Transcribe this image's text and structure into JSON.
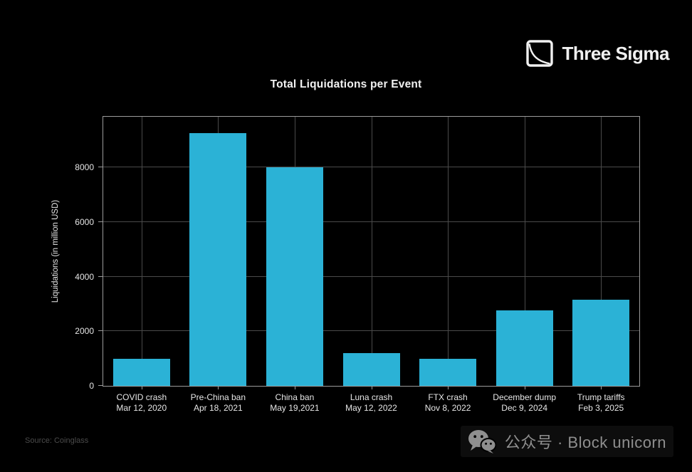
{
  "logo": {
    "text": "Three Sigma",
    "icon": "three-sigma-square-curve-icon"
  },
  "footer": {
    "source": "Source: Coinglass",
    "branding": "公众号 · Block unicorn",
    "branding_icon": "wechat-icon"
  },
  "colors": {
    "background": "#000000",
    "bar": "#2bb2d6",
    "gridline": "#4a4a4a",
    "axis_border": "#9c9c9c",
    "title_text": "#f2f2f2",
    "tick_text": "#e6e6e6",
    "source_text": "#4b4b4b",
    "branding_text": "#8f8f8f"
  },
  "chart_data": {
    "type": "bar",
    "title": "Total Liquidations per Event",
    "xlabel": "",
    "ylabel": "Liquidations (in million USD)",
    "categories": [
      {
        "label": "COVID crash",
        "date": "Mar 12, 2020"
      },
      {
        "label": "Pre-China ban",
        "date": "Apr 18, 2021"
      },
      {
        "label": "China ban",
        "date": "May 19,2021"
      },
      {
        "label": "Luna crash",
        "date": "May 12, 2022"
      },
      {
        "label": "FTX crash",
        "date": "Nov 8, 2022"
      },
      {
        "label": "December dump",
        "date": "Dec 9, 2024"
      },
      {
        "label": "Trump tariffs",
        "date": "Feb 3, 2025"
      }
    ],
    "values": [
      1000,
      9250,
      8000,
      1200,
      1000,
      2750,
      3150
    ],
    "yticks": [
      0,
      2000,
      4000,
      6000,
      8000
    ],
    "ylim": [
      0,
      9850
    ],
    "grid": true,
    "legend": "none"
  }
}
